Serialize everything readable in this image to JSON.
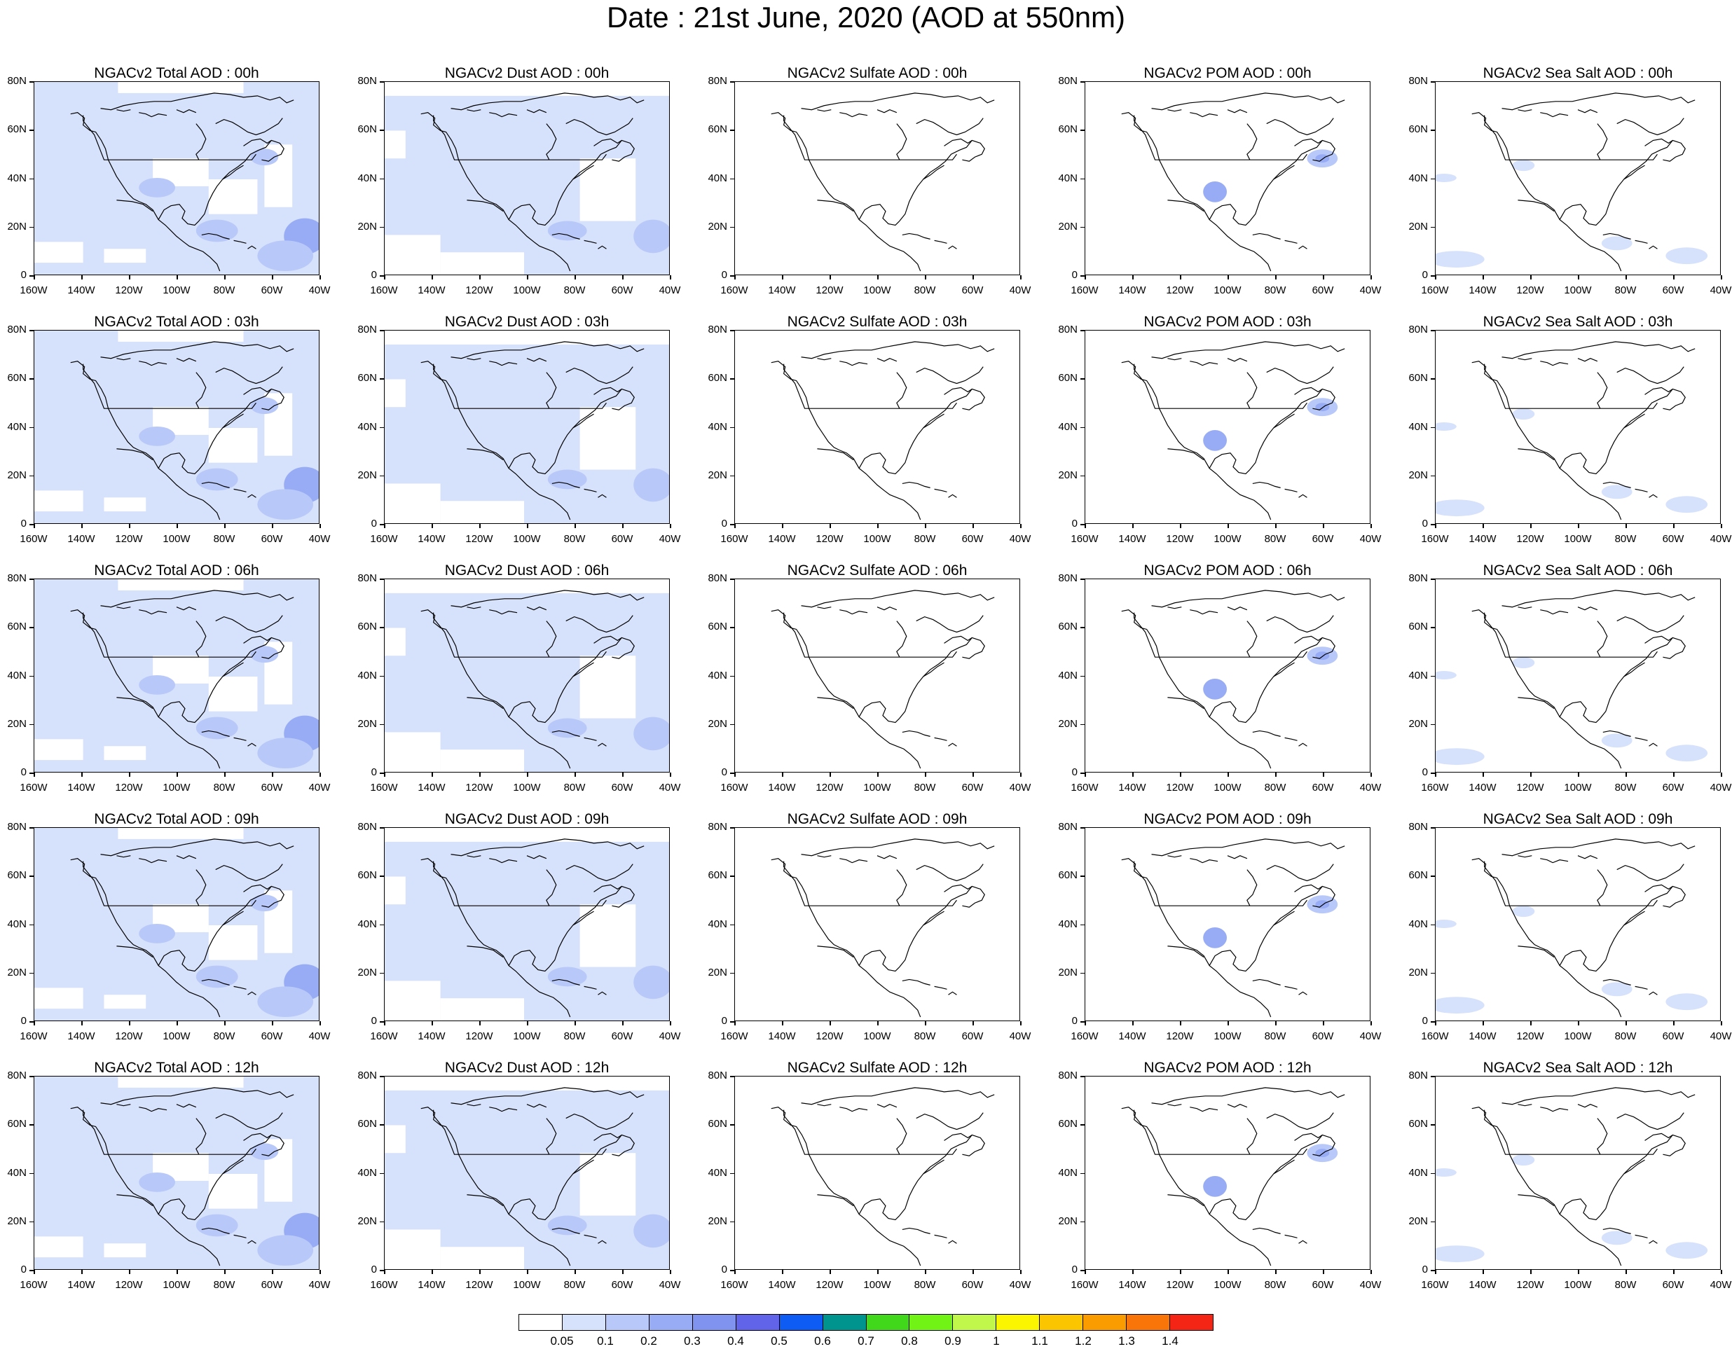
{
  "title": "Date : 21st June, 2020 (AOD at 550nm)",
  "axes": {
    "lat_labels": [
      "80N",
      "60N",
      "40N",
      "20N",
      "0"
    ],
    "lon_labels": [
      "160W",
      "140W",
      "120W",
      "100W",
      "80W",
      "60W",
      "40W"
    ]
  },
  "panels": [
    [
      "NGACv2 Total AOD : 00h",
      "NGACv2 Dust AOD : 00h",
      "NGACv2 Sulfate AOD : 00h",
      "NGACv2 POM AOD : 00h",
      "NGACv2 Sea Salt AOD : 00h"
    ],
    [
      "NGACv2 Total AOD : 03h",
      "NGACv2 Dust AOD : 03h",
      "NGACv2 Sulfate AOD : 03h",
      "NGACv2 POM AOD : 03h",
      "NGACv2 Sea Salt AOD : 03h"
    ],
    [
      "NGACv2 Total AOD : 06h",
      "NGACv2 Dust AOD : 06h",
      "NGACv2 Sulfate AOD : 06h",
      "NGACv2 POM AOD : 06h",
      "NGACv2 Sea Salt AOD : 06h"
    ],
    [
      "NGACv2 Total AOD : 09h",
      "NGACv2 Dust AOD : 09h",
      "NGACv2 Sulfate AOD : 09h",
      "NGACv2 POM AOD : 09h",
      "NGACv2 Sea Salt  AOD : 09h"
    ],
    [
      "NGACv2 Total AOD  : 12h",
      "NGACv2 Dust AOD : 12h",
      "NGACv2 Sulfate AOD : 12h",
      "NGACv2 POM  AOD : 12h",
      "NGACv2 Sea Salt  AOD : 12h"
    ]
  ],
  "colorbar": {
    "labels": [
      "0.05",
      "0.1",
      "0.2",
      "0.3",
      "0.4",
      "0.5",
      "0.6",
      "0.7",
      "0.8",
      "0.9",
      "1",
      "1.1",
      "1.2",
      "1.3",
      "1.4"
    ],
    "colors": [
      "#ffffff",
      "#d6e1fb",
      "#b8c8f8",
      "#97acf4",
      "#7f93ef",
      "#6164e8",
      "#0e5cf4",
      "#00948f",
      "#41d71a",
      "#71f316",
      "#c1f64b",
      "#fbf500",
      "#fbc600",
      "#fa9b00",
      "#f97409",
      "#f52515"
    ]
  },
  "map_colors": {
    "low": "#d6e1fb",
    "mid": "#b8c8f8",
    "high": "#97acf4",
    "coast": "#000000"
  }
}
